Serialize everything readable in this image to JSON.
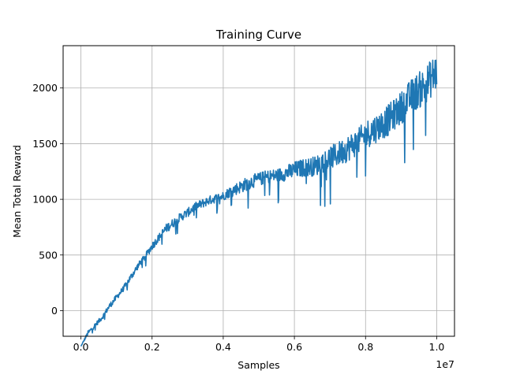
{
  "chart_data": {
    "type": "line",
    "title": "Training Curve",
    "xlabel": "Samples",
    "ylabel": "Mean Total Reward",
    "x_offset_label": "1e7",
    "xlim": [
      -0.05,
      1.05
    ],
    "ylim": [
      -230,
      2380
    ],
    "x_ticks": [
      0.0,
      0.2,
      0.4,
      0.6,
      0.8,
      1.0
    ],
    "x_tick_labels": [
      "0.0",
      "0.2",
      "0.4",
      "0.6",
      "0.8",
      "1.0"
    ],
    "y_ticks": [
      0,
      500,
      1000,
      1500,
      2000
    ],
    "y_tick_labels": [
      "0",
      "500",
      "1000",
      "1500",
      "2000"
    ],
    "grid": true,
    "line_color": "#1f77b4",
    "series": [
      {
        "x": [
          0.0,
          0.02,
          0.04,
          0.06,
          0.08,
          0.1,
          0.12,
          0.14,
          0.16,
          0.18,
          0.2,
          0.22,
          0.24,
          0.26,
          0.28,
          0.3,
          0.32,
          0.34,
          0.36,
          0.38,
          0.4,
          0.42,
          0.44,
          0.46,
          0.48,
          0.5,
          0.52,
          0.54,
          0.56,
          0.58,
          0.6,
          0.62,
          0.64,
          0.66,
          0.68,
          0.7,
          0.72,
          0.74,
          0.76,
          0.78,
          0.8,
          0.82,
          0.84,
          0.86,
          0.88,
          0.9,
          0.92,
          0.94,
          0.96,
          0.98,
          1.0
        ],
        "values": [
          -320,
          -200,
          -130,
          -60,
          40,
          120,
          200,
          300,
          400,
          480,
          580,
          660,
          740,
          790,
          840,
          880,
          930,
          960,
          990,
          1010,
          1030,
          1070,
          1100,
          1130,
          1160,
          1180,
          1200,
          1210,
          1220,
          1240,
          1260,
          1280,
          1290,
          1300,
          1340,
          1370,
          1400,
          1440,
          1480,
          1520,
          1580,
          1620,
          1660,
          1700,
          1760,
          1820,
          1900,
          1960,
          2000,
          2070,
          2150
        ],
        "noise": [
          0,
          20,
          20,
          20,
          25,
          25,
          25,
          30,
          30,
          30,
          35,
          35,
          40,
          40,
          40,
          40,
          40,
          40,
          40,
          40,
          40,
          50,
          55,
          60,
          60,
          60,
          60,
          60,
          65,
          70,
          80,
          80,
          85,
          90,
          100,
          110,
          110,
          120,
          120,
          120,
          130,
          130,
          130,
          140,
          140,
          150,
          150,
          160,
          170,
          170,
          180
        ]
      }
    ]
  }
}
